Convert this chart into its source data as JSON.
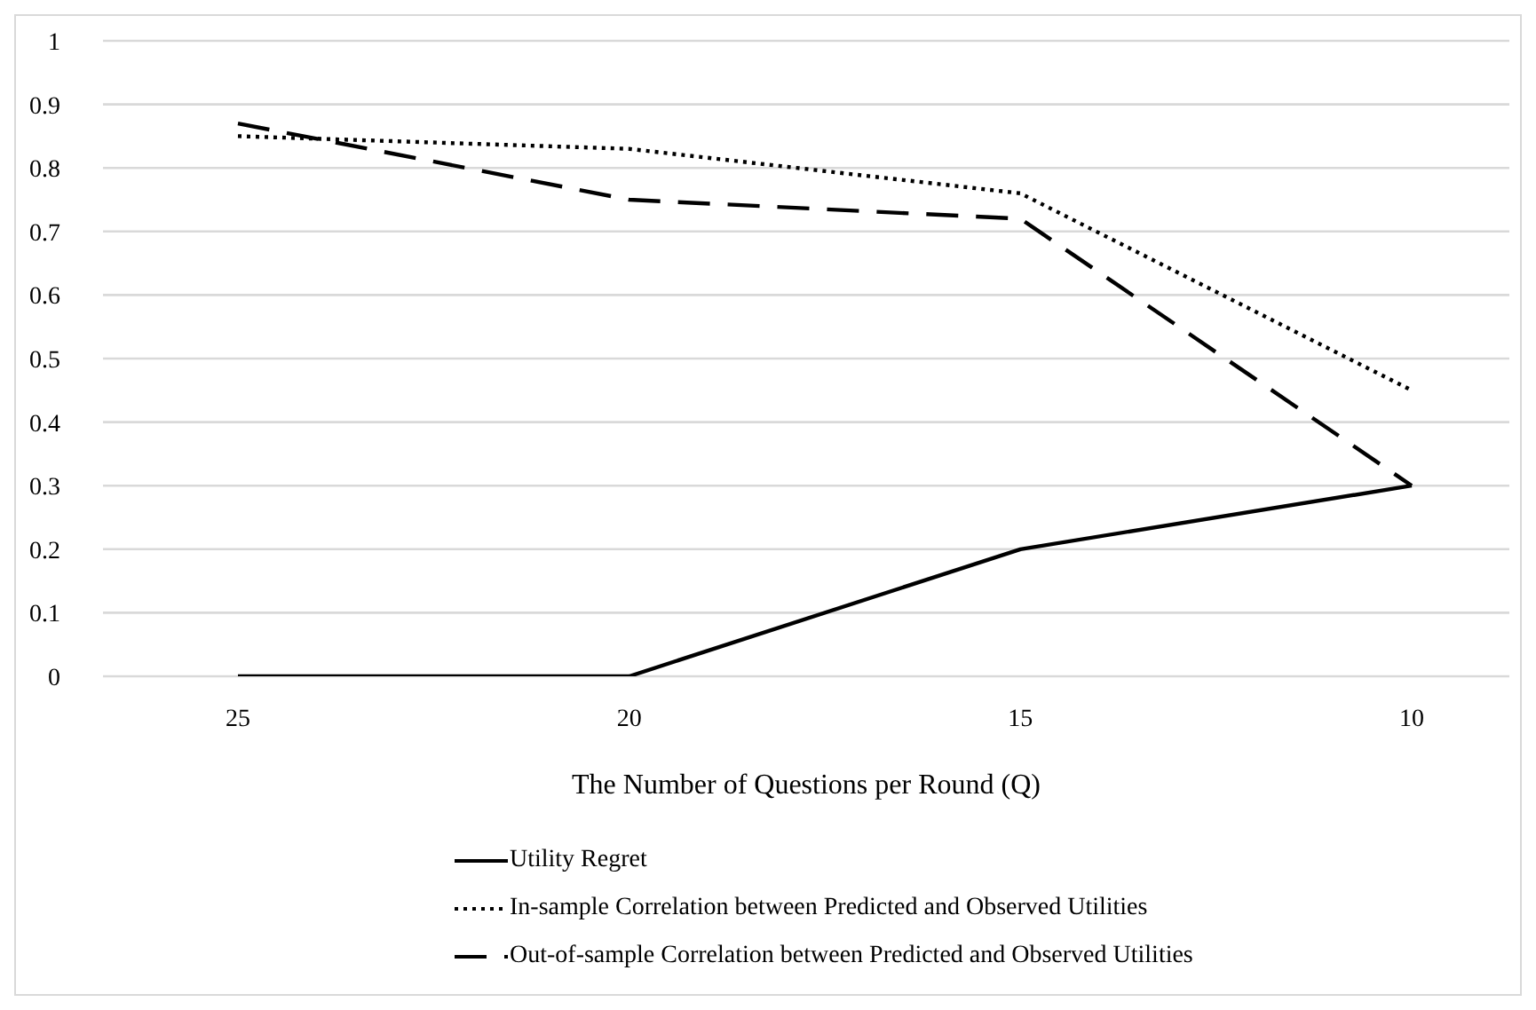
{
  "chart_data": {
    "type": "line",
    "xlabel": "The Number of Questions per Round (Q)",
    "categories": [
      "25",
      "20",
      "15",
      "10"
    ],
    "series": [
      {
        "name": "Utility Regret",
        "color": "#000000",
        "line_style": "solid",
        "values": [
          0,
          0,
          0.2,
          0.3
        ]
      },
      {
        "name": "In-sample Correlation between Predicted and Observed Utilities",
        "color": "#000000",
        "line_style": "dotted",
        "values": [
          0.85,
          0.83,
          0.76,
          0.45
        ]
      },
      {
        "name": "Out-of-sample Correlation between Predicted and Observed Utilities",
        "color": "#000000",
        "line_style": "dashed",
        "values": [
          0.87,
          0.75,
          0.72,
          0.3
        ]
      }
    ],
    "ylim": [
      0,
      1
    ],
    "yticks": [
      0,
      0.1,
      0.2,
      0.3,
      0.4,
      0.5,
      0.6,
      0.7,
      0.8,
      0.9,
      1
    ],
    "grid": "y",
    "legend": "bottom",
    "marker": "none"
  }
}
